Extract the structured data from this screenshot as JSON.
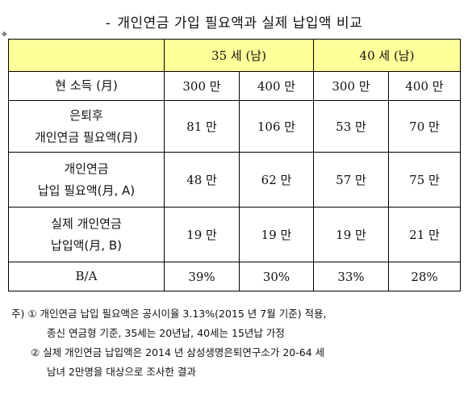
{
  "title": "개인연금 가입 필요액과 실제 납입액 비교",
  "title_prefix": "-",
  "header": {
    "group1": "35 세 (남)",
    "group2": "40 세 (남)"
  },
  "rows": [
    {
      "label": [
        "현 소득 (月)"
      ],
      "values": [
        "300 만",
        "400 만",
        "300 만",
        "400 만"
      ]
    },
    {
      "label": [
        "은퇴후",
        "개인연금 필요액(月)"
      ],
      "values": [
        "81 만",
        "106 만",
        "53 만",
        "70 만"
      ]
    },
    {
      "label": [
        "개인연금",
        "납입 필요액(月, A)"
      ],
      "values": [
        "48 만",
        "62 만",
        "57 만",
        "75 만"
      ]
    },
    {
      "label": [
        "실제 개인연금",
        "납입액(月, B)"
      ],
      "values": [
        "19 만",
        "19 만",
        "19 만",
        "21 만"
      ]
    },
    {
      "label": [
        "B/A"
      ],
      "values": [
        "39%",
        "30%",
        "33%",
        "28%"
      ]
    }
  ],
  "notes": [
    "주) ① 개인연금 납입 필요액은 공시이율 3.13%(2015 년 7월 기준) 적용,",
    "종신 연금형 기준, 35세는 20년납, 40세는 15년납 가정",
    "② 실제 개인연금 납입액은 2014 년 삼성생명은퇴연구소가 20-64 세",
    "남녀 2만명을 대상으로 조사한 결과"
  ]
}
